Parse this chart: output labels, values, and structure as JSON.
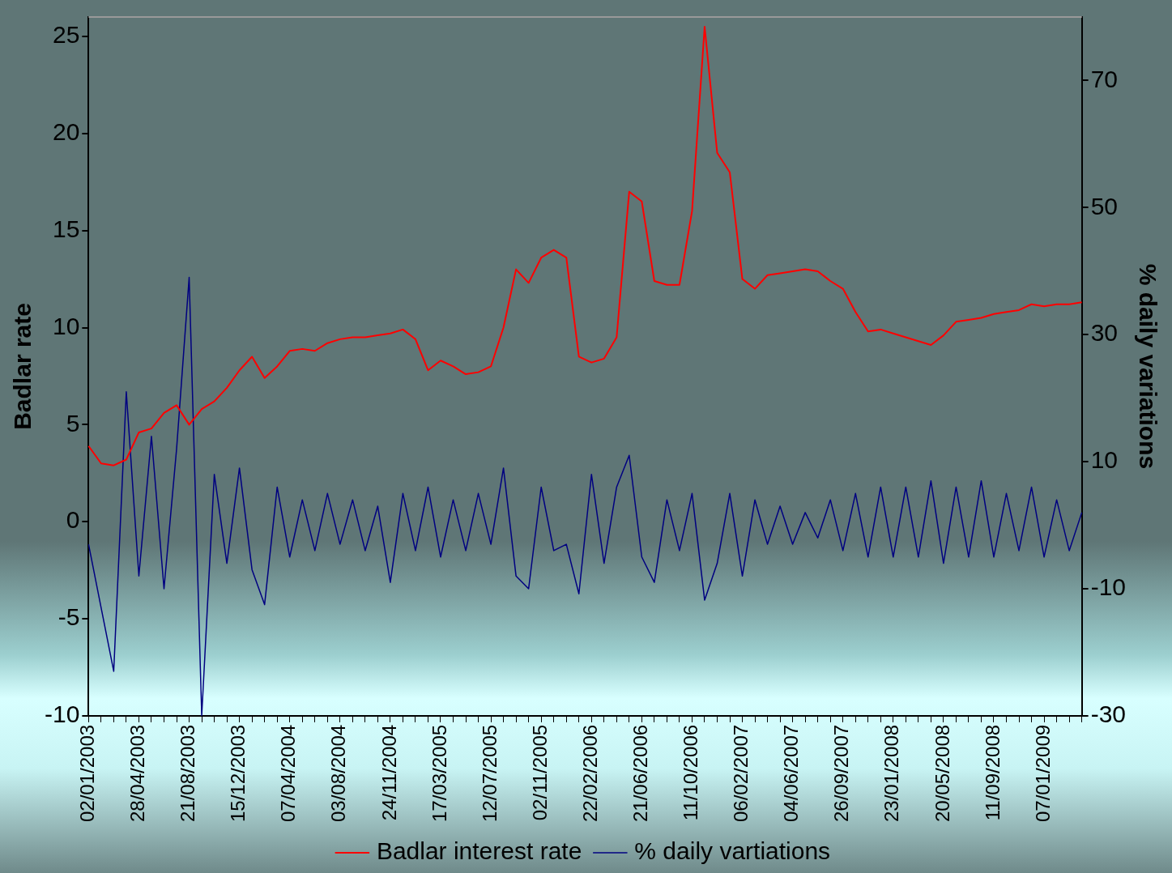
{
  "chart_data": {
    "type": "line",
    "xlabel": null,
    "ylabel": "Badlar rate",
    "y2label": "% daily variations",
    "categories": [
      "02/01/2003",
      null,
      null,
      null,
      "28/04/2003",
      null,
      null,
      null,
      "21/08/2003",
      null,
      null,
      null,
      "15/12/2003",
      null,
      null,
      null,
      "07/04/2004",
      null,
      null,
      null,
      "03/08/2004",
      null,
      null,
      null,
      "24/11/2004",
      null,
      null,
      null,
      "17/03/2005",
      null,
      null,
      null,
      "12/07/2005",
      null,
      null,
      null,
      "02/11/2005",
      null,
      null,
      null,
      "22/02/2006",
      null,
      null,
      null,
      "21/06/2006",
      null,
      null,
      null,
      "11/10/2006",
      null,
      null,
      null,
      "06/02/2007",
      null,
      null,
      null,
      "04/06/2007",
      null,
      null,
      null,
      "26/09/2007",
      null,
      null,
      null,
      "23/01/2008",
      null,
      null,
      null,
      "20/05/2008",
      null,
      null,
      null,
      "11/09/2008",
      null,
      null,
      null,
      "07/01/2009",
      null,
      null,
      null
    ],
    "series": [
      {
        "name": "Badlar interest rate",
        "color": "#ff0000",
        "values": [
          3.9,
          3.0,
          2.9,
          3.2,
          4.6,
          4.8,
          5.6,
          6.0,
          5.0,
          5.8,
          6.2,
          6.9,
          7.8,
          8.5,
          7.4,
          8.0,
          8.8,
          8.9,
          8.8,
          9.2,
          9.4,
          9.5,
          9.5,
          9.6,
          9.7,
          9.9,
          9.4,
          7.8,
          8.3,
          8.0,
          7.6,
          7.7,
          8.0,
          10.0,
          13.0,
          12.3,
          13.6,
          14.0,
          13.6,
          8.5,
          8.2,
          8.4,
          9.5,
          17.0,
          16.5,
          12.4,
          12.2,
          12.2,
          16.0,
          25.5,
          19.0,
          18.0,
          12.5,
          12.0,
          12.7,
          12.8,
          12.9,
          13.0,
          12.9,
          12.4,
          12.0,
          10.8,
          9.8,
          9.9,
          9.7,
          9.5,
          9.3,
          9.1,
          9.6,
          10.3,
          10.4,
          10.5,
          10.7,
          10.8,
          10.9,
          11.2,
          11.1,
          11.2,
          11.2,
          11.3
        ]
      },
      {
        "name": "% daily vartiations",
        "color": "#000080",
        "axis": "y2",
        "values": [
          -3,
          -13,
          -23,
          21,
          -8,
          14,
          -10,
          12,
          39,
          -30,
          8,
          -6,
          9,
          -7,
          -12.5,
          6,
          -5,
          4,
          -4,
          5,
          -3,
          4,
          -4,
          3,
          -9,
          5,
          -4,
          6,
          -5,
          4,
          -4,
          5,
          -3,
          9,
          -8,
          -10,
          6,
          -4,
          -3,
          -10.8,
          8,
          -6,
          6,
          11,
          -5,
          -9,
          4,
          -4,
          5,
          -11.8,
          -6,
          5,
          -8,
          4,
          -3,
          3,
          -3,
          2,
          -2,
          4,
          -4,
          5,
          -5,
          6,
          -5,
          6,
          -5,
          7,
          -6,
          6,
          -5,
          7,
          -5,
          5,
          -4,
          6,
          -5,
          4,
          -4,
          2
        ]
      }
    ],
    "ylim": [
      -10,
      26
    ],
    "yticks": [
      -10,
      -5,
      0,
      5,
      10,
      15,
      20,
      25
    ],
    "y2lim": [
      -30,
      80
    ],
    "y2ticks": [
      -30,
      -10,
      10,
      30,
      50,
      70
    ],
    "grid": false,
    "legend": "bottom",
    "marker": "none",
    "line_style": "solid"
  }
}
